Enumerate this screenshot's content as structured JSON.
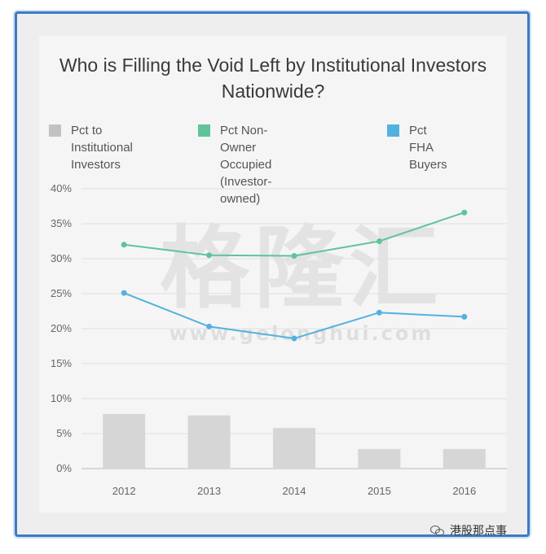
{
  "colors": {
    "institutional": "#c2c2c2",
    "bars": "#d6d6d6",
    "non_owner": "#5fc49a",
    "fha": "#53b1e0",
    "frame": "#3d7bc4"
  },
  "chart_data": {
    "type": "bar+line",
    "title": "Who is Filling the Void Left by Institutional Investors Nationwide?",
    "categories": [
      "2012",
      "2013",
      "2014",
      "2015",
      "2016"
    ],
    "y_ticks": [
      "0%",
      "5%",
      "10%",
      "15%",
      "20%",
      "25%",
      "30%",
      "35%",
      "40%"
    ],
    "ylim": [
      0,
      40
    ],
    "grid": true,
    "legend_position": "top",
    "series": [
      {
        "name": "Pct to Institutional Investors",
        "type": "bar",
        "values": [
          7.8,
          7.6,
          5.8,
          2.8,
          2.8
        ]
      },
      {
        "name": "Pct Non-Owner Occupied (Investor-owned)",
        "type": "line",
        "values": [
          32.0,
          30.5,
          30.4,
          32.5,
          36.6
        ]
      },
      {
        "name": "Pct FHA Buyers",
        "type": "line",
        "values": [
          25.1,
          20.3,
          18.6,
          22.3,
          21.7
        ]
      }
    ]
  },
  "legend": {
    "institutional": "Pct to Institutional\nInvestors",
    "non_owner": "Pct Non-Owner Occupied\n(Investor-owned)",
    "fha": "Pct FHA Buyers"
  },
  "watermark": {
    "text": "格隆汇",
    "url": "www.gelonghui.com"
  },
  "footer": {
    "text": "港股那点事",
    "icon": "wechat-icon"
  }
}
